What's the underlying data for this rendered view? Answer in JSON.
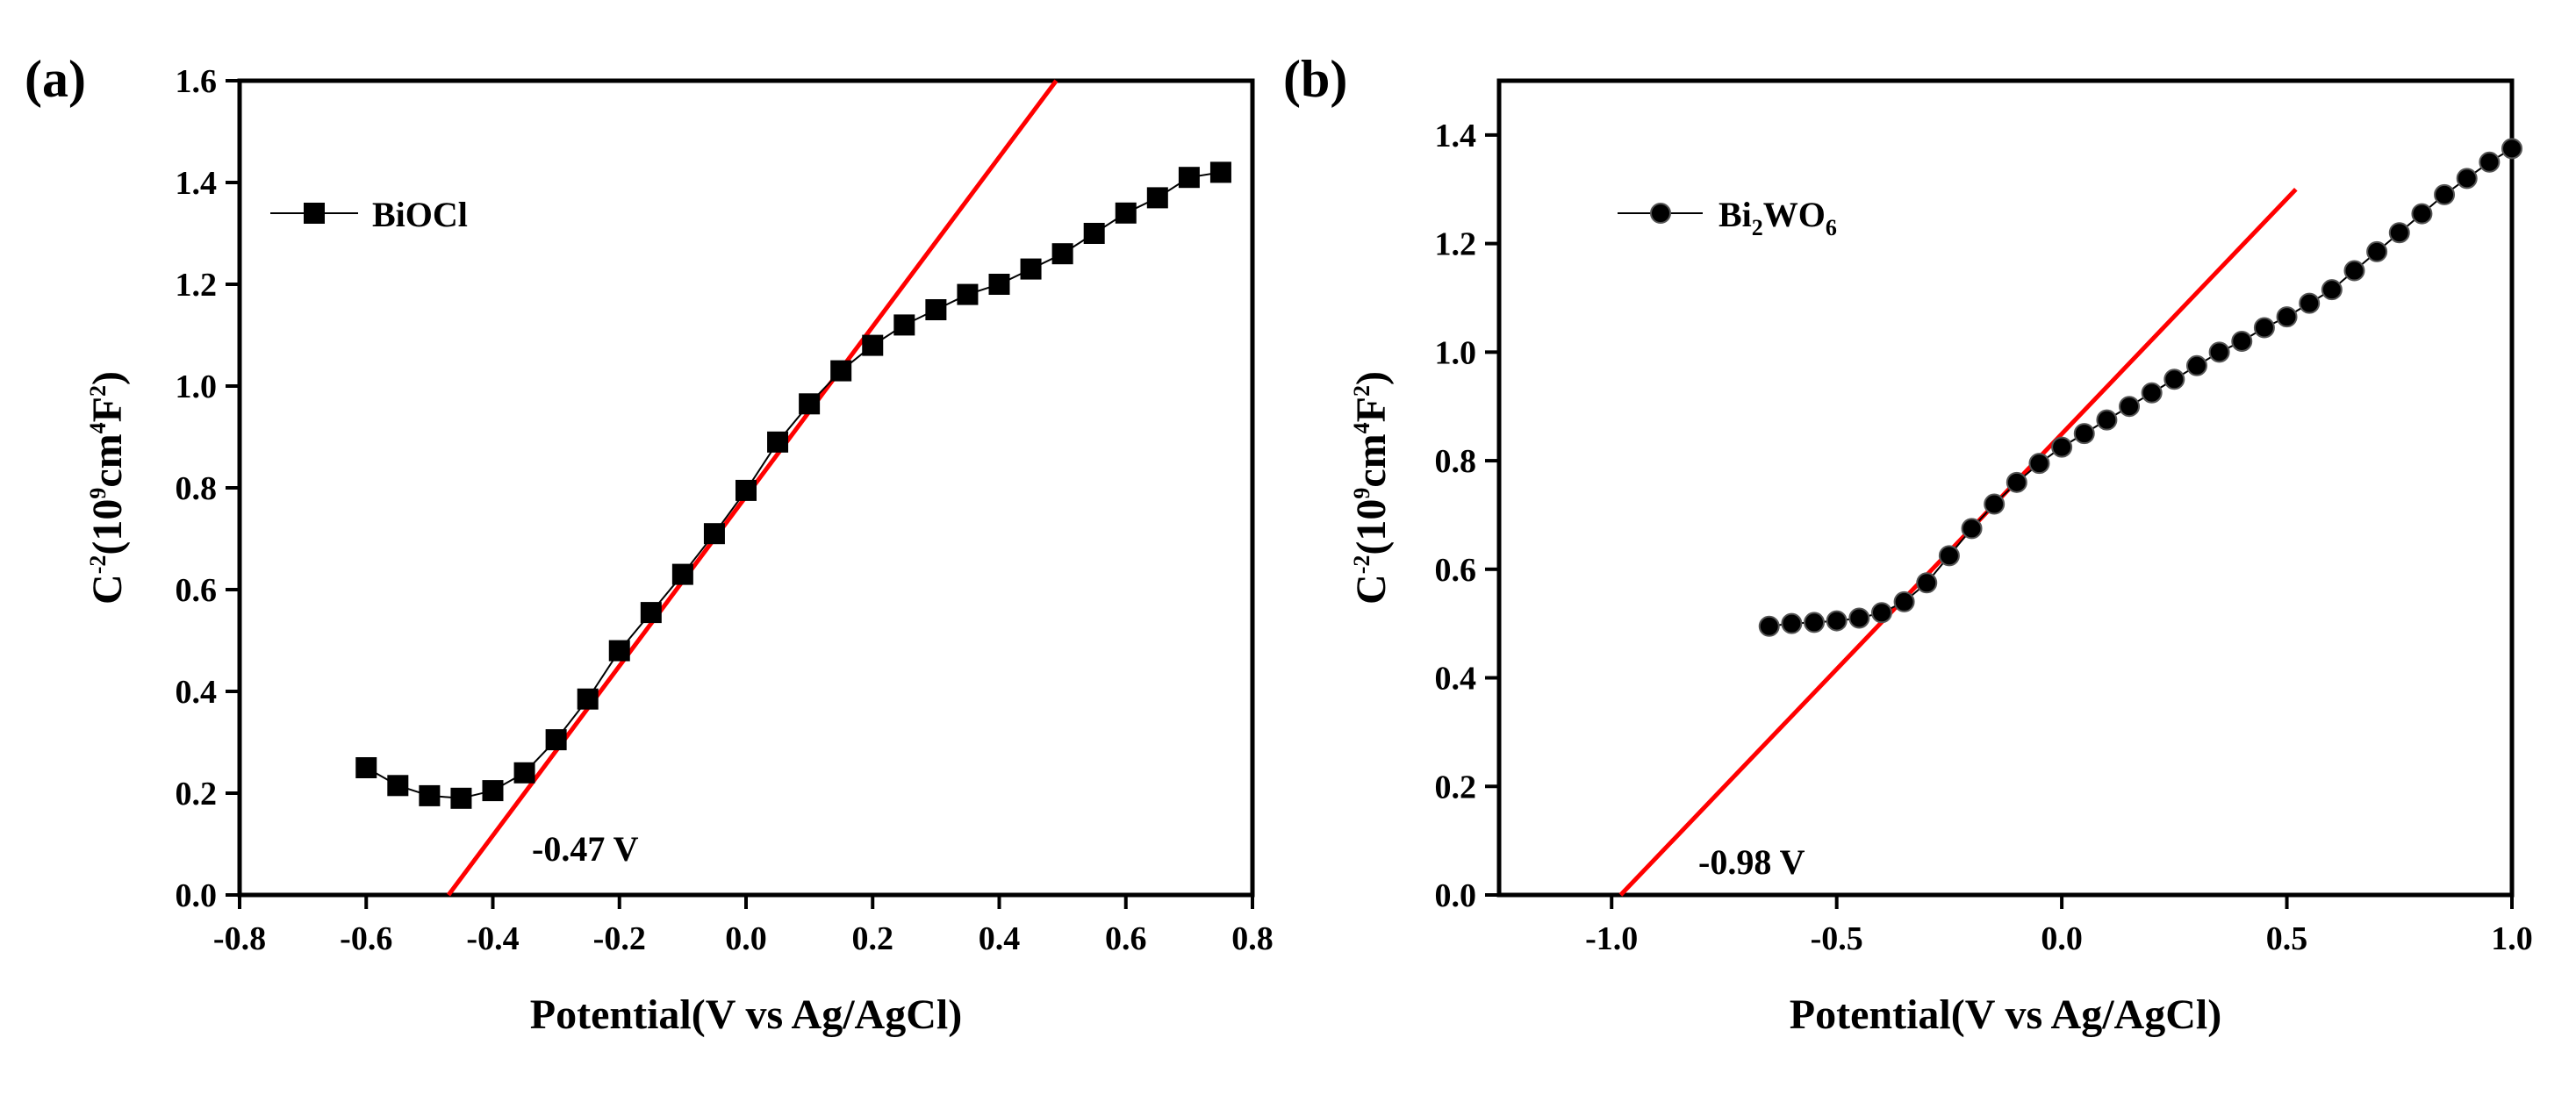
{
  "chart_data": [
    {
      "type": "scatter",
      "panel_label": "(a)",
      "xlabel": "Potential(V vs Ag/AgCl)",
      "ylabel_parts": {
        "base": "C",
        "base_exp": "-2",
        "open": "(10",
        "mult_exp": "9",
        "unit1": "cm",
        "unit1_exp": "4",
        "unit2": "F",
        "unit2_exp": "2",
        "close": ")"
      },
      "xlim": [
        -0.8,
        0.8
      ],
      "ylim": [
        0.0,
        1.6
      ],
      "xticks": [
        -0.8,
        -0.6,
        -0.4,
        -0.2,
        0.0,
        0.2,
        0.4,
        0.6,
        0.8
      ],
      "xtick_labels": [
        "-0.8",
        "-0.6",
        "-0.4",
        "-0.2",
        "0.0",
        "0.2",
        "0.4",
        "0.6",
        "0.8"
      ],
      "yticks": [
        0.0,
        0.2,
        0.4,
        0.6,
        0.8,
        1.0,
        1.2,
        1.4,
        1.6
      ],
      "ytick_labels": [
        "0.0",
        "0.2",
        "0.4",
        "0.6",
        "0.8",
        "1.0",
        "1.2",
        "1.4",
        "1.6"
      ],
      "legend": {
        "label": "BiOCl",
        "marker": "square",
        "position": "top-left"
      },
      "series": [
        {
          "name": "BiOCl",
          "marker": "square",
          "x": [
            -0.6,
            -0.55,
            -0.5,
            -0.45,
            -0.4,
            -0.35,
            -0.3,
            -0.25,
            -0.2,
            -0.15,
            -0.1,
            -0.05,
            0.0,
            0.05,
            0.1,
            0.15,
            0.2,
            0.25,
            0.3,
            0.35,
            0.4,
            0.45,
            0.5,
            0.55,
            0.6,
            0.65,
            0.7,
            0.75
          ],
          "y": [
            0.25,
            0.215,
            0.195,
            0.19,
            0.205,
            0.24,
            0.305,
            0.385,
            0.48,
            0.555,
            0.63,
            0.71,
            0.795,
            0.89,
            0.965,
            1.03,
            1.08,
            1.12,
            1.15,
            1.18,
            1.2,
            1.23,
            1.26,
            1.3,
            1.34,
            1.37,
            1.41,
            1.42
          ]
        }
      ],
      "fit_line": {
        "x": [
          -0.47,
          0.49
        ],
        "y": [
          0.0,
          1.6
        ],
        "color": "#ff0000"
      },
      "annotation": {
        "text": "-0.47 V",
        "x": -0.34,
        "y": 0.08
      }
    },
    {
      "type": "scatter",
      "panel_label": "(b)",
      "xlabel": "Potential(V vs Ag/AgCl)",
      "ylabel_parts": {
        "base": "C",
        "base_exp": "-2",
        "open": "(10",
        "mult_exp": "9",
        "unit1": "cm",
        "unit1_exp": "4",
        "unit2": "F",
        "unit2_exp": "2",
        "close": ")"
      },
      "xlim": [
        -1.25,
        1.0
      ],
      "ylim": [
        0.0,
        1.5
      ],
      "xticks": [
        -1.0,
        -0.5,
        0.0,
        0.5,
        1.0
      ],
      "xtick_labels": [
        "-1.0",
        "-0.5",
        "0.0",
        "0.5",
        "1.0"
      ],
      "yticks": [
        0.0,
        0.2,
        0.4,
        0.6,
        0.8,
        1.0,
        1.2,
        1.4
      ],
      "ytick_labels": [
        "0.0",
        "0.2",
        "0.4",
        "0.6",
        "0.8",
        "1.0",
        "1.2",
        "1.4"
      ],
      "legend": {
        "label_base": "Bi",
        "label_sub1": "2",
        "label_mid": "WO",
        "label_sub2": "6",
        "marker": "circle",
        "position": "top-left"
      },
      "series": [
        {
          "name": "Bi2WO6",
          "marker": "circle",
          "x": [
            -0.65,
            -0.6,
            -0.55,
            -0.5,
            -0.45,
            -0.4,
            -0.35,
            -0.3,
            -0.25,
            -0.2,
            -0.15,
            -0.1,
            -0.05,
            0.0,
            0.05,
            0.1,
            0.15,
            0.2,
            0.25,
            0.3,
            0.35,
            0.4,
            0.45,
            0.5,
            0.55,
            0.6,
            0.65,
            0.7,
            0.75,
            0.8,
            0.85,
            0.9,
            0.95,
            1.0
          ],
          "y": [
            0.495,
            0.5,
            0.502,
            0.505,
            0.51,
            0.52,
            0.54,
            0.575,
            0.625,
            0.675,
            0.72,
            0.76,
            0.795,
            0.825,
            0.85,
            0.875,
            0.9,
            0.925,
            0.95,
            0.975,
            1.0,
            1.02,
            1.045,
            1.065,
            1.09,
            1.115,
            1.15,
            1.185,
            1.22,
            1.255,
            1.29,
            1.32,
            1.35,
            1.375
          ]
        }
      ],
      "fit_line": {
        "x": [
          -0.98,
          0.52
        ],
        "y": [
          0.0,
          1.3
        ],
        "color": "#ff0000"
      },
      "annotation": {
        "text": "-0.98 V",
        "x": -0.93,
        "y": 0.06
      }
    }
  ]
}
